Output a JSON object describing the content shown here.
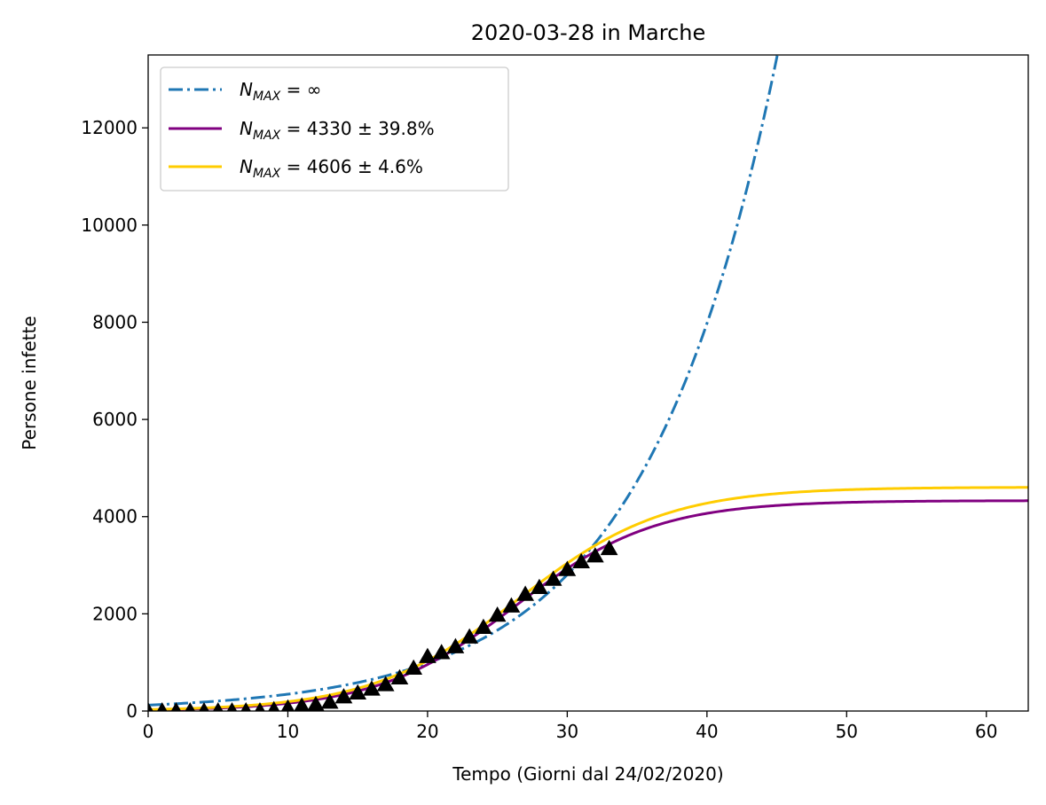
{
  "chart_data": {
    "type": "line",
    "title": "2020-03-28 in Marche",
    "xlabel": "Tempo (Giorni dal 24/02/2020)",
    "ylabel": "Persone infette",
    "xlim": [
      0,
      63
    ],
    "ylim": [
      0,
      13500
    ],
    "xticks": [
      0,
      10,
      20,
      30,
      40,
      50,
      60
    ],
    "yticks": [
      0,
      2000,
      4000,
      6000,
      8000,
      10000,
      12000
    ],
    "legend_position": "upper-left",
    "grid": false,
    "series": [
      {
        "name": "N_MAX = ∞",
        "legend_main": "N",
        "legend_sub": "MAX",
        "legend_rest": " = ∞",
        "style": "dashdot",
        "color": "#1f77b4",
        "model": "exponential",
        "params": {
          "a": 122,
          "k": 0.1045
        }
      },
      {
        "name": "N_MAX = 4330 ± 39.8%",
        "legend_main": "N",
        "legend_sub": "MAX",
        "legend_rest": " = 4330 ± 39.8%",
        "style": "solid",
        "color": "#800080",
        "model": "logistic",
        "params": {
          "N": 4330,
          "t0": 26.3,
          "r": 0.2
        }
      },
      {
        "name": "N_MAX = 4606 ± 4.6%",
        "legend_main": "N",
        "legend_sub": "MAX",
        "legend_rest": " = 4606 ± 4.6%",
        "style": "solid",
        "color": "#ffcc00",
        "model": "logistic",
        "params": {
          "N": 4606,
          "t0": 26.5,
          "r": 0.19
        }
      }
    ],
    "observed": {
      "marker": "triangle",
      "color": "#000000",
      "x": [
        0,
        1,
        2,
        3,
        4,
        5,
        6,
        7,
        8,
        9,
        10,
        11,
        12,
        13,
        14,
        15,
        16,
        17,
        18,
        19,
        20,
        21,
        22,
        23,
        24,
        25,
        26,
        27,
        28,
        29,
        30,
        31,
        32,
        33
      ],
      "y": [
        0,
        0,
        0,
        0,
        0,
        0,
        0,
        0,
        0,
        25,
        60,
        100,
        130,
        180,
        290,
        370,
        450,
        540,
        680,
        880,
        1120,
        1200,
        1320,
        1520,
        1720,
        1970,
        2160,
        2400,
        2540,
        2710,
        2910,
        3070,
        3190,
        3340
      ]
    }
  }
}
